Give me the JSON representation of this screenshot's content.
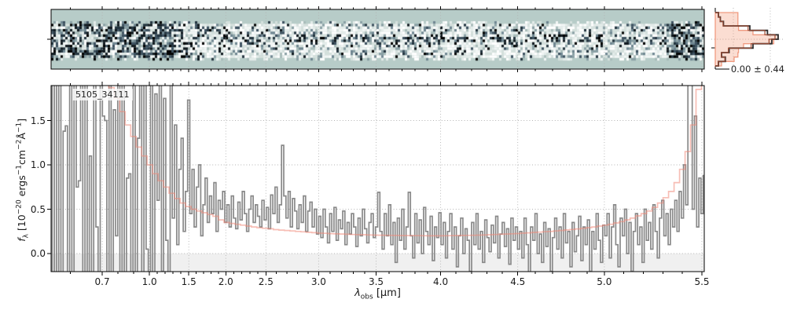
{
  "figure": {
    "title_label": "5105_34111",
    "hist_annotation": "0.00 ± 0.44",
    "background": "#ffffff"
  },
  "axes": {
    "x_label": {
      "symbol": "λ",
      "sub": "obs",
      "unit": " [μm]"
    },
    "y_label": {
      "f": "f",
      "sub": "λ",
      "pre": " [10",
      "exp1": "−20",
      "mid1": " ergs",
      "exp2": "−1",
      "mid2": "cm",
      "exp3": "−2",
      "mid3": "Å",
      "exp4": "−1",
      "post": "]"
    },
    "x_ticks": {
      "labels": [
        "0.7",
        "1.0",
        "1.5",
        "2.0",
        "2.5",
        "3.0",
        "3.5",
        "4.0",
        "4.5",
        "5.0",
        "5.5"
      ],
      "wavelengths_um": [
        0.7,
        1.0,
        1.5,
        2.0,
        2.5,
        3.0,
        3.5,
        4.0,
        4.5,
        5.0,
        5.5
      ],
      "fractions": [
        0.0783,
        0.1506,
        0.2108,
        0.2675,
        0.3289,
        0.4096,
        0.4976,
        0.5964,
        0.7145,
        0.847,
        0.9964
      ]
    },
    "x_minor_ticks_um": [
      0.6,
      0.8,
      0.9,
      1.1,
      1.2,
      1.3,
      1.4,
      1.6,
      1.7,
      1.8,
      1.9,
      2.1,
      2.2,
      2.3,
      2.4,
      2.6,
      2.7,
      2.8,
      2.9,
      3.1,
      3.2,
      3.3,
      3.4,
      3.6,
      3.7,
      3.8,
      3.9,
      4.1,
      4.2,
      4.3,
      4.4,
      4.6,
      4.7,
      4.8,
      4.9,
      5.1,
      5.2,
      5.3,
      5.4
    ],
    "xlim_um": [
      0.54,
      5.54
    ],
    "y_ticks": {
      "labels": [
        "0.0",
        "0.5",
        "1.0",
        "1.5"
      ],
      "values": [
        0.0,
        0.5,
        1.0,
        1.5
      ]
    },
    "ylim": [
      -0.2,
      1.9
    ]
  },
  "colors": {
    "teal_background": "#b7ccc8",
    "flux_line": "#898989",
    "uncertainty_line": "#f08878",
    "hist_fill": "rgba(244,150,116,0.32)",
    "hist_fill_edge": "#f09a80",
    "hist_outline": "#2c2c2c",
    "hist_outline2": "#9c4a33",
    "grid": "#b3b3b3",
    "zero_band": "#f0f0f0",
    "spine": "#000000",
    "text": "#1a1a1a"
  },
  "chart_data": [
    {
      "type": "heatmap",
      "panel": "2d-spectrum",
      "description": "Rectified 2D spectrum strip sharing the wavelength axis with the 1D panel; pale teal background, salt-and-pepper noise band across the middle with a dark source trace at its center; very noisy (high-contrast) regions at the blue end (λ < 1.1 μm) and red end (λ > 5.3 μm); dotted gridlines at major wavelength ticks; one tick on the left marks the trace row.",
      "background": "#b7ccc8",
      "trace_center_frac": 0.5
    },
    {
      "type": "line",
      "panel": "1d-spectrum",
      "title": "5105_34111",
      "xlabel": "λ_obs [μm]",
      "ylabel": "f_λ [10⁻²⁰ ergs⁻¹cm⁻²Å⁻¹]",
      "xlim_um": [
        0.54,
        5.54
      ],
      "ylim": [
        -0.2,
        1.9
      ],
      "grid": true,
      "x_sampling": "uniform in detector pixel across the axis (values listed left to right)",
      "series": [
        {
          "name": "flux",
          "style": "step",
          "color": "#898989",
          "values": [
            2.6,
            -0.5,
            2.6,
            -0.5,
            2.6,
            -0.5,
            1.38,
            1.44,
            -0.5,
            2.6,
            -0.5,
            2.6,
            0.75,
            0.82,
            2.6,
            -0.5,
            2.6,
            -0.5,
            1.1,
            -0.5,
            2.6,
            0.3,
            -0.5,
            2.6,
            1.55,
            1.5,
            -0.5,
            2.6,
            -0.5,
            1.62,
            0.2,
            2.6,
            -0.5,
            2.6,
            -0.5,
            0.85,
            0.9,
            -0.5,
            2.6,
            -0.5,
            1.3,
            2.6,
            -0.5,
            2.2,
            0.05,
            -0.5,
            2.5,
            -0.35,
            1.8,
            0.6,
            2.4,
            -0.2,
            1.75,
            0.15,
            -0.3,
            1.9,
            0.4,
            1.45,
            0.1,
            0.95,
            1.3,
            0.25,
            0.7,
            1.73,
            0.45,
            0.95,
            0.3,
            0.75,
            1.0,
            0.2,
            0.55,
            0.85,
            0.35,
            0.65,
            0.45,
            0.8,
            0.25,
            0.6,
            0.5,
            0.7,
            0.35,
            0.55,
            0.3,
            0.65,
            0.4,
            0.28,
            0.58,
            0.38,
            0.7,
            0.45,
            0.25,
            0.5,
            0.65,
            0.35,
            0.55,
            0.42,
            0.3,
            0.6,
            0.38,
            0.52,
            0.28,
            0.66,
            0.45,
            0.75,
            0.35,
            0.55,
            1.22,
            0.65,
            0.4,
            0.7,
            0.3,
            0.62,
            0.48,
            0.28,
            0.55,
            0.35,
            0.65,
            0.25,
            0.48,
            0.58,
            0.3,
            0.5,
            0.22,
            0.42,
            0.18,
            0.5,
            0.3,
            0.12,
            0.45,
            0.25,
            0.52,
            0.15,
            0.38,
            0.28,
            0.48,
            0.1,
            0.35,
            0.22,
            0.45,
            0.3,
            0.08,
            0.4,
            0.2,
            0.5,
            0.28,
            0.12,
            0.35,
            0.45,
            0.18,
            0.3,
            0.69,
            0.25,
            0.05,
            0.45,
            0.2,
            0.55,
            0.1,
            0.35,
            -0.1,
            0.4,
            0.15,
            0.5,
            0.05,
            0.3,
            0.69,
            0.2,
            -0.05,
            0.45,
            0.12,
            0.38,
            0.0,
            0.52,
            0.25,
            0.1,
            0.42,
            -0.08,
            0.3,
            0.18,
            0.46,
            0.1,
            0.35,
            -0.05,
            0.25,
            0.45,
            0.05,
            0.3,
            -0.15,
            0.2,
            0.4,
            0.0,
            0.28,
            0.15,
            -0.2,
            0.35,
            0.1,
            0.45,
            0.05,
            0.25,
            -0.1,
            0.38,
            0.18,
            0.02,
            0.32,
            0.12,
            0.42,
            -0.05,
            0.22,
            0.35,
            0.08,
            0.28,
            -0.12,
            0.4,
            0.15,
            0.3,
            0.05,
            0.25,
            -0.05,
            0.4,
            0.1,
            -0.25,
            0.3,
            0.15,
            0.45,
            0.0,
            0.22,
            -0.1,
            0.35,
            0.08,
            0.28,
            -0.2,
            0.18,
            0.4,
            0.05,
            0.3,
            -0.05,
            0.45,
            0.12,
            0.25,
            -0.15,
            0.35,
            0.02,
            0.2,
            0.42,
            -0.08,
            0.3,
            0.1,
            0.38,
            -0.2,
            0.25,
            0.05,
            0.45,
            0.15,
            -0.1,
            0.32,
            0.2,
            0.45,
            -0.05,
            0.3,
            0.55,
            0.1,
            -0.15,
            0.4,
            0.2,
            0.5,
            0.0,
            0.35,
            -0.2,
            0.25,
            0.45,
            0.1,
            0.3,
            -0.1,
            0.5,
            0.15,
            0.35,
            0.05,
            0.55,
            0.25,
            -0.05,
            0.4,
            0.6,
            0.2,
            0.45,
            0.1,
            0.5,
            0.3,
            0.6,
            0.25,
            0.7,
            0.4,
            1.0,
            0.55,
            2.4,
            2.4,
            0.5,
            1.55,
            0.3,
            0.85,
            0.45,
            0.88
          ]
        },
        {
          "name": "flux uncertainty",
          "style": "step",
          "color": "#f08878",
          "values": [
            4.0,
            3.8,
            3.6,
            3.4,
            3.2,
            3.0,
            2.8,
            2.6,
            2.4,
            2.2,
            2.0,
            1.87,
            1.75,
            1.6,
            1.45,
            1.32,
            1.2,
            1.1,
            1.0,
            0.9,
            0.82,
            0.75,
            0.68,
            0.62,
            0.57,
            0.53,
            0.5,
            0.48,
            0.46,
            0.44,
            0.42,
            0.38,
            0.35,
            0.34,
            0.33,
            0.32,
            0.31,
            0.3,
            0.29,
            0.285,
            0.28,
            0.27,
            0.265,
            0.26,
            0.255,
            0.25,
            0.245,
            0.24,
            0.235,
            0.23,
            0.228,
            0.225,
            0.222,
            0.22,
            0.218,
            0.215,
            0.213,
            0.212,
            0.21,
            0.208,
            0.207,
            0.206,
            0.205,
            0.204,
            0.203,
            0.203,
            0.202,
            0.202,
            0.201,
            0.2,
            0.2,
            0.2,
            0.201,
            0.202,
            0.203,
            0.204,
            0.205,
            0.206,
            0.208,
            0.21,
            0.212,
            0.215,
            0.218,
            0.22,
            0.223,
            0.226,
            0.23,
            0.234,
            0.238,
            0.242,
            0.246,
            0.25,
            0.255,
            0.26,
            0.266,
            0.272,
            0.278,
            0.285,
            0.292,
            0.3,
            0.31,
            0.32,
            0.33,
            0.345,
            0.36,
            0.38,
            0.4,
            0.425,
            0.45,
            0.48,
            0.52,
            0.57,
            0.63,
            0.7,
            0.8,
            0.95,
            1.15,
            1.45,
            1.85,
            2.4
          ]
        }
      ]
    },
    {
      "type": "histogram",
      "panel": "residual-distribution",
      "orientation": "horizontal",
      "annotation": "0.00 ± 0.44",
      "bins_top_to_bottom": 12,
      "series": [
        {
          "name": "filled distribution",
          "color": "#f09a80",
          "counts_norm": [
            0.36,
            0.36,
            0.36,
            0.37,
            0.6,
            1.0,
            0.93,
            0.45,
            0.37,
            0.36,
            0.3,
            0.1
          ]
        },
        {
          "name": "outlined distribution",
          "color": "#2c2c2c",
          "counts_norm": [
            0.05,
            0.08,
            0.13,
            0.55,
            0.83,
            1.0,
            0.9,
            0.6,
            0.22,
            0.1,
            0.16,
            0.05
          ]
        }
      ]
    }
  ]
}
